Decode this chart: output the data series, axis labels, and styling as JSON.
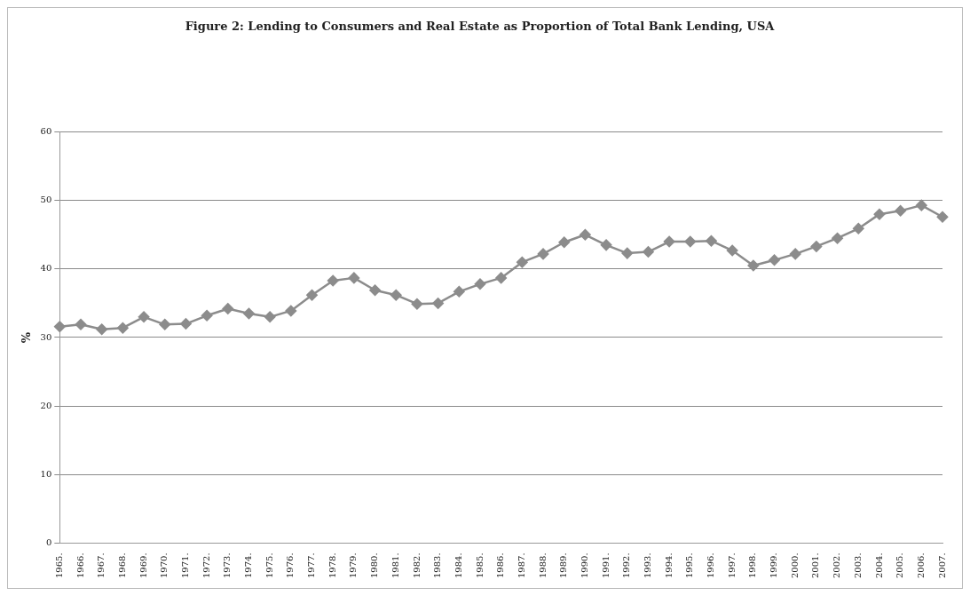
{
  "chart_data": {
    "type": "line",
    "title": "Figure 2: Lending to Consumers and Real Estate as Proportion of Total Bank Lending, USA",
    "ylabel": "%",
    "categories": [
      "1965.",
      "1966.",
      "1967.",
      "1968.",
      "1969.",
      "1970.",
      "1971.",
      "1972.",
      "1973.",
      "1974.",
      "1975.",
      "1976.",
      "1977.",
      "1978.",
      "1979.",
      "1980.",
      "1981.",
      "1982.",
      "1983.",
      "1984.",
      "1985.",
      "1986.",
      "1987.",
      "1988.",
      "1989.",
      "1990.",
      "1991.",
      "1992.",
      "1993.",
      "1994.",
      "1995.",
      "1996.",
      "1997.",
      "1998.",
      "1999.",
      "2000.",
      "2001.",
      "2002.",
      "2003.",
      "2004.",
      "2005.",
      "2006.",
      "2007."
    ],
    "series": [
      {
        "color": "#8c8c8c",
        "values": [
          31.6,
          31.9,
          31.2,
          31.4,
          33.0,
          31.9,
          32.0,
          33.2,
          34.2,
          33.5,
          33.0,
          33.9,
          36.2,
          38.3,
          38.7,
          36.9,
          36.2,
          34.9,
          35.0,
          36.7,
          37.8,
          38.7,
          41.0,
          42.2,
          43.9,
          45.0,
          43.5,
          42.3,
          42.5,
          44.0,
          44.0,
          44.1,
          42.7,
          40.5,
          41.3,
          42.2,
          43.3,
          44.5,
          45.9,
          48.0,
          48.5,
          49.3,
          47.6
        ]
      }
    ],
    "ylim": [
      0,
      60
    ],
    "yticks": [
      0,
      10,
      20,
      30,
      40,
      50,
      60
    ],
    "grid": "y",
    "legend": false,
    "marker": "diamond",
    "line_style": "solid"
  }
}
